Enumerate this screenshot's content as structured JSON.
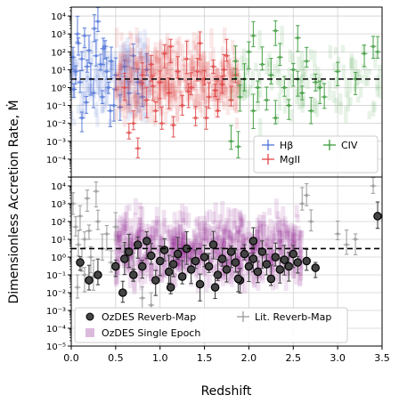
{
  "chart_data": [
    {
      "type": "scatter",
      "panel": "top",
      "xlim": [
        0.0,
        3.5
      ],
      "ylim_log10": [
        -5,
        4.5
      ],
      "yscale": "log",
      "grid": true,
      "reference_line_y": 3,
      "legend": {
        "placement": "lower-right",
        "entries": [
          "Hβ",
          "MgII",
          "CIV"
        ]
      },
      "series": [
        {
          "name": "Hβ",
          "color": "#4f74d8",
          "marker": "plus",
          "x_range": [
            0.0,
            0.9
          ],
          "points": [
            [
              0.02,
              50
            ],
            [
              0.05,
              8
            ],
            [
              0.08,
              300
            ],
            [
              0.1,
              2
            ],
            [
              0.12,
              40
            ],
            [
              0.15,
              800
            ],
            [
              0.18,
              15
            ],
            [
              0.2,
              120
            ],
            [
              0.22,
              3
            ],
            [
              0.25,
              0.5
            ],
            [
              0.28,
              60
            ],
            [
              0.3,
              5000
            ],
            [
              0.33,
              20
            ],
            [
              0.35,
              0.3
            ],
            [
              0.38,
              200
            ],
            [
              0.4,
              8
            ],
            [
              0.42,
              1
            ],
            [
              0.45,
              30
            ],
            [
              0.48,
              0.1
            ],
            [
              0.5,
              5
            ],
            [
              0.55,
              0.08
            ],
            [
              0.6,
              15
            ],
            [
              0.65,
              0.5
            ],
            [
              0.7,
              60
            ],
            [
              0.75,
              2
            ],
            [
              0.8,
              0.3
            ],
            [
              0.85,
              10
            ],
            [
              0.12,
              0.02
            ],
            [
              0.07,
              1000
            ],
            [
              0.03,
              0.8
            ],
            [
              0.17,
              0.15
            ],
            [
              0.26,
              2000
            ],
            [
              0.36,
              150
            ],
            [
              0.44,
              0.05
            ]
          ]
        },
        {
          "name": "MgII",
          "color": "#e04545",
          "marker": "plus",
          "x_range": [
            0.5,
            1.9
          ],
          "points": [
            [
              0.6,
              1
            ],
            [
              0.7,
              0.01
            ],
            [
              0.75,
              0.0004
            ],
            [
              0.8,
              5
            ],
            [
              0.85,
              0.2
            ],
            [
              0.9,
              20
            ],
            [
              0.95,
              0.05
            ],
            [
              1.0,
              2
            ],
            [
              1.05,
              80
            ],
            [
              1.1,
              0.5
            ],
            [
              1.15,
              0.008
            ],
            [
              1.2,
              8
            ],
            [
              1.25,
              0.1
            ],
            [
              1.3,
              40
            ],
            [
              1.35,
              1
            ],
            [
              1.4,
              0.02
            ],
            [
              1.45,
              300
            ],
            [
              1.5,
              3
            ],
            [
              1.55,
              0.3
            ],
            [
              1.6,
              15
            ],
            [
              1.65,
              0.05
            ],
            [
              1.7,
              1.5
            ],
            [
              1.75,
              60
            ],
            [
              1.8,
              0.2
            ],
            [
              1.85,
              5
            ],
            [
              0.65,
              0.003
            ],
            [
              0.92,
              1.2
            ],
            [
              1.12,
              200
            ],
            [
              1.32,
              0.6
            ],
            [
              1.52,
              0.02
            ],
            [
              1.72,
              10
            ],
            [
              1.02,
              0.01
            ],
            [
              1.42,
              8
            ],
            [
              1.62,
              0.7
            ]
          ]
        },
        {
          "name": "CIV",
          "color": "#3a9a3a",
          "marker": "plus",
          "x_range": [
            1.8,
            3.5
          ],
          "points": [
            [
              1.8,
              0.001
            ],
            [
              1.85,
              30
            ],
            [
              1.9,
              0.3
            ],
            [
              1.95,
              3
            ],
            [
              2.0,
              100
            ],
            [
              2.05,
              0.05
            ],
            [
              2.1,
              1
            ],
            [
              2.15,
              20
            ],
            [
              2.2,
              0.2
            ],
            [
              2.25,
              5
            ],
            [
              2.3,
              0.02
            ],
            [
              2.35,
              50
            ],
            [
              2.4,
              1
            ],
            [
              2.45,
              0.1
            ],
            [
              2.5,
              10
            ],
            [
              2.55,
              3
            ],
            [
              2.6,
              0.5
            ],
            [
              2.65,
              30
            ],
            [
              2.7,
              0.05
            ],
            [
              2.75,
              2
            ],
            [
              2.8,
              1
            ],
            [
              2.85,
              0.3
            ],
            [
              3.0,
              8
            ],
            [
              3.2,
              3
            ],
            [
              3.3,
              80
            ],
            [
              3.4,
              200
            ],
            [
              3.45,
              100
            ],
            [
              2.05,
              800
            ],
            [
              2.3,
              1500
            ],
            [
              2.55,
              600
            ],
            [
              1.88,
              0.0005
            ]
          ]
        }
      ]
    },
    {
      "type": "scatter",
      "panel": "bottom",
      "xlim": [
        0.0,
        3.5
      ],
      "ylim_log10": [
        -5,
        4.5
      ],
      "yscale": "log",
      "grid": true,
      "reference_line_y": 3,
      "xlabel": "Redshift",
      "ylabel": "Dimensionless Accretion Rate, Ṁ",
      "x_ticks": [
        "0.0",
        "0.5",
        "1.0",
        "1.5",
        "2.0",
        "2.5",
        "3.0",
        "3.5"
      ],
      "y_ticks": [
        "10⁻⁵",
        "10⁻⁴",
        "10⁻³",
        "10⁻²",
        "10⁻¹",
        "10⁰",
        "10¹",
        "10²",
        "10³",
        "10⁴"
      ],
      "legend": {
        "placement": "lower-left",
        "entries": [
          "OzDES Reverb-Map",
          "OzDES Single Epoch",
          "Lit. Reverb-Map"
        ]
      },
      "series": [
        {
          "name": "OzDES Reverb-Map",
          "color": "#444444",
          "marker": "circle",
          "points": [
            [
              0.1,
              0.5
            ],
            [
              0.2,
              0.05
            ],
            [
              0.3,
              0.1
            ],
            [
              0.5,
              0.3
            ],
            [
              0.6,
              0.8
            ],
            [
              0.65,
              2
            ],
            [
              0.7,
              0.1
            ],
            [
              0.75,
              5
            ],
            [
              0.8,
              0.3
            ],
            [
              0.85,
              8
            ],
            [
              0.9,
              1.2
            ],
            [
              0.95,
              0.05
            ],
            [
              1.0,
              0.6
            ],
            [
              1.05,
              2.5
            ],
            [
              1.1,
              0.15
            ],
            [
              1.15,
              0.4
            ],
            [
              1.2,
              1.5
            ],
            [
              1.25,
              0.08
            ],
            [
              1.3,
              3
            ],
            [
              1.35,
              0.2
            ],
            [
              1.4,
              0.6
            ],
            [
              1.45,
              0.03
            ],
            [
              1.5,
              1
            ],
            [
              1.55,
              0.3
            ],
            [
              1.6,
              5
            ],
            [
              1.65,
              0.1
            ],
            [
              1.7,
              0.8
            ],
            [
              1.75,
              0.2
            ],
            [
              1.8,
              2
            ],
            [
              1.85,
              0.5
            ],
            [
              1.9,
              0.05
            ],
            [
              1.95,
              1.5
            ],
            [
              2.0,
              0.3
            ],
            [
              2.05,
              0.8
            ],
            [
              2.1,
              0.15
            ],
            [
              2.15,
              2
            ],
            [
              2.2,
              0.4
            ],
            [
              2.25,
              0.06
            ],
            [
              2.3,
              1
            ],
            [
              2.35,
              0.2
            ],
            [
              2.4,
              0.7
            ],
            [
              2.45,
              0.3
            ],
            [
              2.5,
              1.5
            ],
            [
              2.55,
              0.5
            ],
            [
              2.65,
              0.6
            ],
            [
              2.75,
              0.25
            ],
            [
              0.58,
              0.01
            ],
            [
              1.12,
              0.02
            ],
            [
              1.62,
              0.02
            ],
            [
              1.88,
              0.06
            ],
            [
              2.05,
              8
            ],
            [
              3.45,
              200
            ]
          ]
        },
        {
          "name": "OzDES Single Epoch",
          "color": "#8b1a8b",
          "marker": "square",
          "x_range": [
            0.5,
            2.6
          ]
        },
        {
          "name": "Lit. Reverb-Map",
          "color": "#999999",
          "marker": "plus",
          "points": [
            [
              0.02,
              1000
            ],
            [
              0.05,
              50
            ],
            [
              0.08,
              5
            ],
            [
              0.1,
              200
            ],
            [
              0.12,
              0.5
            ],
            [
              0.15,
              10
            ],
            [
              0.18,
              2000
            ],
            [
              0.2,
              30
            ],
            [
              0.22,
              1
            ],
            [
              0.25,
              0.08
            ],
            [
              0.28,
              5000
            ],
            [
              0.3,
              100
            ],
            [
              0.35,
              3
            ],
            [
              0.4,
              20
            ],
            [
              0.45,
              0.5
            ],
            [
              0.5,
              50
            ],
            [
              0.6,
              2
            ],
            [
              0.7,
              0.2
            ],
            [
              0.8,
              0.005
            ],
            [
              0.9,
              0.002
            ],
            [
              2.6,
              1000
            ],
            [
              2.65,
              3000
            ],
            [
              2.7,
              100
            ],
            [
              3.0,
              20
            ],
            [
              3.1,
              5
            ],
            [
              3.2,
              10
            ],
            [
              3.4,
              10000
            ],
            [
              0.07,
              0.02
            ],
            [
              0.15,
              0.1
            ]
          ]
        }
      ]
    }
  ]
}
